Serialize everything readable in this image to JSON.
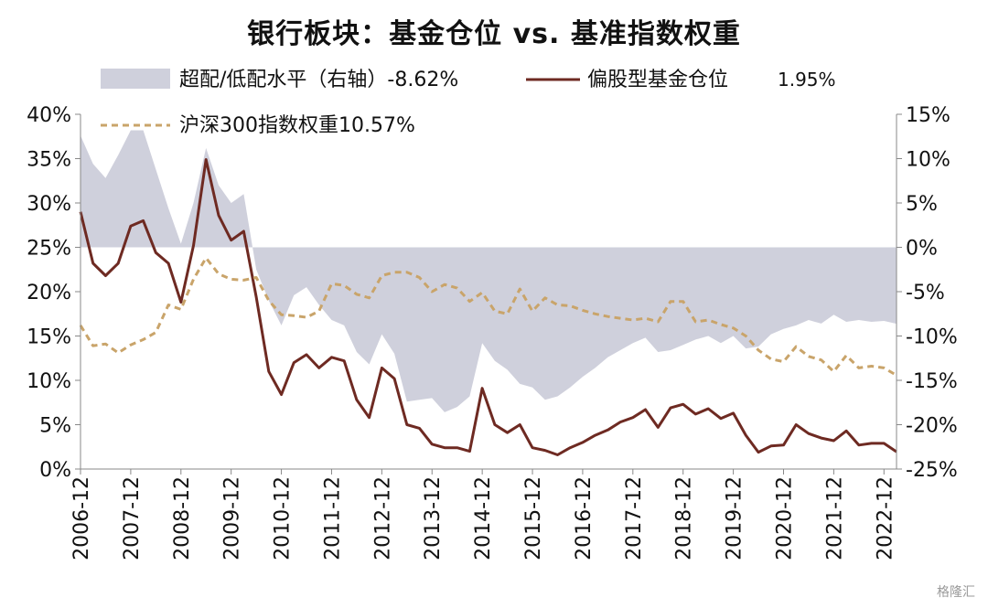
{
  "chart_data": {
    "type": "line",
    "title": "银行板块：基金仓位 vs. 基准指数权重",
    "legend": {
      "overweight": "超配/低配水平（右轴）-8.62%",
      "fund_position": "偏股型基金仓位",
      "fund_position_value": "1.95%",
      "index_weight": "沪深300指数权重10.57%"
    },
    "colors": {
      "overweight": "#cfd0dc",
      "fund_position": "#6e2a22",
      "index_weight": "#c9a46a"
    },
    "left_axis": {
      "min": 0,
      "max": 40,
      "ticks": [
        "40%",
        "35%",
        "30%",
        "25%",
        "20%",
        "15%",
        "10%",
        "5%",
        "0%"
      ]
    },
    "right_axis": {
      "min": -25,
      "max": 15,
      "ticks": [
        "15%",
        "10%",
        "5%",
        "0%",
        "-5%",
        "-10%",
        "-15%",
        "-20%",
        "-25%"
      ]
    },
    "x_tick_labels": [
      "2006-12",
      "2007-12",
      "2008-12",
      "2009-12",
      "2010-12",
      "2011-12",
      "2012-12",
      "2013-12",
      "2014-12",
      "2015-12",
      "2016-12",
      "2017-12",
      "2018-12",
      "2019-12",
      "2020-12",
      "2021-12",
      "2022-12"
    ],
    "x_start": "2006-12",
    "x_end": "2023-03",
    "series": [
      {
        "key": "overweight",
        "name": "超配/低配水平（右轴）",
        "axis": "right",
        "style": "area",
        "points": [
          [
            "2006-12",
            12.6
          ],
          [
            "2007-03",
            9.4
          ],
          [
            "2007-06",
            7.8
          ],
          [
            "2007-09",
            10.4
          ],
          [
            "2007-12",
            13.2
          ],
          [
            "2008-03",
            13.2
          ],
          [
            "2008-06",
            8.8
          ],
          [
            "2008-09",
            4.4
          ],
          [
            "2008-12",
            0.4
          ],
          [
            "2009-03",
            5.0
          ],
          [
            "2009-06",
            11.2
          ],
          [
            "2009-09",
            7.0
          ],
          [
            "2009-12",
            5.0
          ],
          [
            "2010-03",
            6.0
          ],
          [
            "2010-06",
            -2.5
          ],
          [
            "2010-09",
            -6.0
          ],
          [
            "2010-12",
            -8.8
          ],
          [
            "2011-03",
            -5.4
          ],
          [
            "2011-06",
            -4.5
          ],
          [
            "2011-09",
            -6.5
          ],
          [
            "2011-12",
            -8.2
          ],
          [
            "2012-03",
            -8.8
          ],
          [
            "2012-06",
            -11.8
          ],
          [
            "2012-09",
            -13.2
          ],
          [
            "2012-12",
            -9.8
          ],
          [
            "2013-03",
            -12.0
          ],
          [
            "2013-06",
            -17.4
          ],
          [
            "2013-09",
            -17.2
          ],
          [
            "2013-12",
            -17.0
          ],
          [
            "2014-03",
            -18.6
          ],
          [
            "2014-06",
            -18.0
          ],
          [
            "2014-09",
            -16.8
          ],
          [
            "2014-12",
            -10.8
          ],
          [
            "2015-03",
            -12.8
          ],
          [
            "2015-06",
            -13.8
          ],
          [
            "2015-09",
            -15.4
          ],
          [
            "2015-12",
            -15.8
          ],
          [
            "2016-03",
            -17.2
          ],
          [
            "2016-06",
            -16.8
          ],
          [
            "2016-09",
            -15.8
          ],
          [
            "2016-12",
            -14.6
          ],
          [
            "2017-03",
            -13.6
          ],
          [
            "2017-06",
            -12.4
          ],
          [
            "2017-09",
            -11.6
          ],
          [
            "2017-12",
            -10.8
          ],
          [
            "2018-03",
            -10.2
          ],
          [
            "2018-06",
            -11.8
          ],
          [
            "2018-09",
            -11.6
          ],
          [
            "2018-12",
            -11.0
          ],
          [
            "2019-03",
            -10.4
          ],
          [
            "2019-06",
            -10.0
          ],
          [
            "2019-09",
            -10.8
          ],
          [
            "2019-12",
            -10.0
          ],
          [
            "2020-03",
            -11.4
          ],
          [
            "2020-06",
            -11.2
          ],
          [
            "2020-09",
            -9.8
          ],
          [
            "2020-12",
            -9.2
          ],
          [
            "2021-03",
            -8.8
          ],
          [
            "2021-06",
            -8.2
          ],
          [
            "2021-09",
            -8.6
          ],
          [
            "2021-12",
            -7.6
          ],
          [
            "2022-03",
            -8.4
          ],
          [
            "2022-06",
            -8.2
          ],
          [
            "2022-09",
            -8.4
          ],
          [
            "2022-12",
            -8.3
          ],
          [
            "2023-03",
            -8.62
          ]
        ]
      },
      {
        "key": "fund_position",
        "name": "偏股型基金仓位",
        "axis": "left",
        "style": "line",
        "points": [
          [
            "2006-12",
            29.0
          ],
          [
            "2007-03",
            23.2
          ],
          [
            "2007-06",
            21.8
          ],
          [
            "2007-09",
            23.2
          ],
          [
            "2007-12",
            27.4
          ],
          [
            "2008-03",
            28.0
          ],
          [
            "2008-06",
            24.4
          ],
          [
            "2008-09",
            23.2
          ],
          [
            "2008-12",
            18.8
          ],
          [
            "2009-03",
            25.2
          ],
          [
            "2009-06",
            34.9
          ],
          [
            "2009-09",
            28.6
          ],
          [
            "2009-12",
            25.8
          ],
          [
            "2010-03",
            26.8
          ],
          [
            "2010-06",
            19.4
          ],
          [
            "2010-09",
            11.0
          ],
          [
            "2010-12",
            8.4
          ],
          [
            "2011-03",
            12.0
          ],
          [
            "2011-06",
            12.9
          ],
          [
            "2011-09",
            11.4
          ],
          [
            "2011-12",
            12.6
          ],
          [
            "2012-03",
            12.2
          ],
          [
            "2012-06",
            7.8
          ],
          [
            "2012-09",
            5.8
          ],
          [
            "2012-12",
            11.4
          ],
          [
            "2013-03",
            10.2
          ],
          [
            "2013-06",
            5.0
          ],
          [
            "2013-09",
            4.6
          ],
          [
            "2013-12",
            2.8
          ],
          [
            "2014-03",
            2.4
          ],
          [
            "2014-06",
            2.4
          ],
          [
            "2014-09",
            2.0
          ],
          [
            "2014-12",
            9.1
          ],
          [
            "2015-03",
            5.0
          ],
          [
            "2015-06",
            4.1
          ],
          [
            "2015-09",
            5.0
          ],
          [
            "2015-12",
            2.4
          ],
          [
            "2016-03",
            2.1
          ],
          [
            "2016-06",
            1.6
          ],
          [
            "2016-09",
            2.4
          ],
          [
            "2016-12",
            3.0
          ],
          [
            "2017-03",
            3.8
          ],
          [
            "2017-06",
            4.4
          ],
          [
            "2017-09",
            5.3
          ],
          [
            "2017-12",
            5.8
          ],
          [
            "2018-03",
            6.7
          ],
          [
            "2018-06",
            4.7
          ],
          [
            "2018-09",
            6.9
          ],
          [
            "2018-12",
            7.3
          ],
          [
            "2019-03",
            6.2
          ],
          [
            "2019-06",
            6.8
          ],
          [
            "2019-09",
            5.7
          ],
          [
            "2019-12",
            6.3
          ],
          [
            "2020-03",
            3.8
          ],
          [
            "2020-06",
            1.9
          ],
          [
            "2020-09",
            2.6
          ],
          [
            "2020-12",
            2.7
          ],
          [
            "2021-03",
            5.0
          ],
          [
            "2021-06",
            4.0
          ],
          [
            "2021-09",
            3.5
          ],
          [
            "2021-12",
            3.2
          ],
          [
            "2022-03",
            4.3
          ],
          [
            "2022-06",
            2.7
          ],
          [
            "2022-09",
            2.9
          ],
          [
            "2022-12",
            2.9
          ],
          [
            "2023-03",
            1.95
          ]
        ]
      },
      {
        "key": "index_weight",
        "name": "沪深300指数权重",
        "axis": "left",
        "style": "dashed",
        "points": [
          [
            "2006-12",
            16.2
          ],
          [
            "2007-03",
            13.9
          ],
          [
            "2007-06",
            14.1
          ],
          [
            "2007-09",
            13.1
          ],
          [
            "2007-12",
            14.0
          ],
          [
            "2008-03",
            14.6
          ],
          [
            "2008-06",
            15.4
          ],
          [
            "2008-09",
            18.5
          ],
          [
            "2008-12",
            18.0
          ],
          [
            "2009-03",
            21.4
          ],
          [
            "2009-06",
            23.8
          ],
          [
            "2009-09",
            22.0
          ],
          [
            "2009-12",
            21.4
          ],
          [
            "2010-03",
            21.3
          ],
          [
            "2010-06",
            21.6
          ],
          [
            "2010-09",
            19.0
          ],
          [
            "2010-12",
            17.4
          ],
          [
            "2011-03",
            17.3
          ],
          [
            "2011-06",
            17.1
          ],
          [
            "2011-09",
            17.8
          ],
          [
            "2011-12",
            20.9
          ],
          [
            "2012-03",
            20.7
          ],
          [
            "2012-06",
            19.7
          ],
          [
            "2012-09",
            19.3
          ],
          [
            "2012-12",
            21.8
          ],
          [
            "2013-03",
            22.2
          ],
          [
            "2013-06",
            22.2
          ],
          [
            "2013-09",
            21.6
          ],
          [
            "2013-12",
            20.0
          ],
          [
            "2014-03",
            20.8
          ],
          [
            "2014-06",
            20.4
          ],
          [
            "2014-09",
            18.9
          ],
          [
            "2014-12",
            19.9
          ],
          [
            "2015-03",
            17.8
          ],
          [
            "2015-06",
            17.5
          ],
          [
            "2015-09",
            20.3
          ],
          [
            "2015-12",
            17.8
          ],
          [
            "2016-03",
            19.3
          ],
          [
            "2016-06",
            18.5
          ],
          [
            "2016-09",
            18.4
          ],
          [
            "2016-12",
            17.9
          ],
          [
            "2017-03",
            17.5
          ],
          [
            "2017-06",
            17.2
          ],
          [
            "2017-09",
            17.0
          ],
          [
            "2017-12",
            16.8
          ],
          [
            "2018-03",
            17.0
          ],
          [
            "2018-06",
            16.6
          ],
          [
            "2018-09",
            18.9
          ],
          [
            "2018-12",
            18.9
          ],
          [
            "2019-03",
            16.6
          ],
          [
            "2019-06",
            16.8
          ],
          [
            "2019-09",
            16.3
          ],
          [
            "2019-12",
            15.9
          ],
          [
            "2020-03",
            15.0
          ],
          [
            "2020-06",
            13.4
          ],
          [
            "2020-09",
            12.4
          ],
          [
            "2020-12",
            12.1
          ],
          [
            "2021-03",
            13.8
          ],
          [
            "2021-06",
            12.7
          ],
          [
            "2021-09",
            12.3
          ],
          [
            "2021-12",
            11.0
          ],
          [
            "2022-03",
            12.8
          ],
          [
            "2022-06",
            11.4
          ],
          [
            "2022-09",
            11.6
          ],
          [
            "2022-12",
            11.4
          ],
          [
            "2023-03",
            10.57
          ]
        ]
      }
    ],
    "grid": false
  },
  "watermark": "格隆汇"
}
